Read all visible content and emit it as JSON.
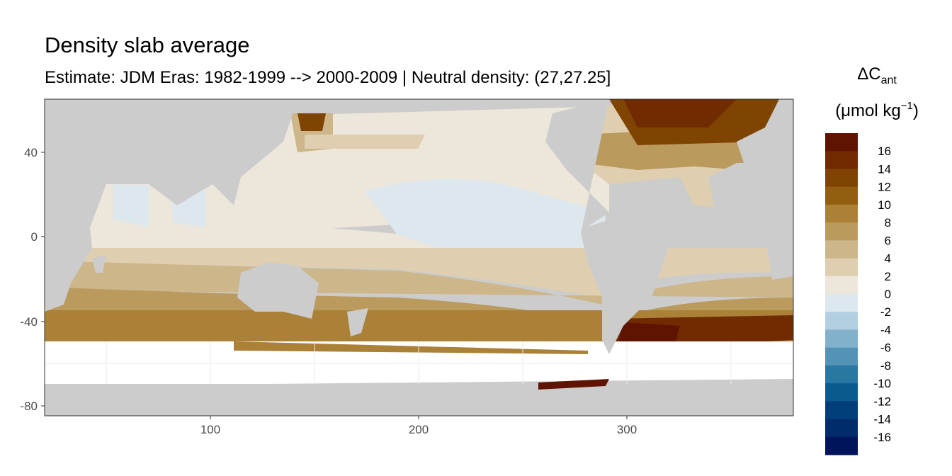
{
  "title": "Density slab average",
  "subtitle": "Estimate: JDM Eras: 1982-1999 --> 2000-2009 | Neutral density: (27,27.25]",
  "legend": {
    "title_main": "ΔC",
    "title_sub": "ant",
    "unit": "(μmol kg",
    "unit_exp": "−1",
    "unit_close": ")",
    "labels": [
      "16",
      "14",
      "12",
      "10",
      "8",
      "6",
      "4",
      "2",
      "0",
      "-2",
      "-4",
      "-6",
      "-8",
      "-10",
      "-12",
      "-14",
      "-16"
    ],
    "colors": [
      "#5e1400",
      "#702b01",
      "#804402",
      "#925e10",
      "#ab8138",
      "#bb9a5d",
      "#ccb68a",
      "#dfcfb0",
      "#ede6db",
      "#dde8ee",
      "#b2cfe1",
      "#82b2cb",
      "#5393b6",
      "#2a77a2",
      "#0a5a8e",
      "#003e7a",
      "#002d6a",
      "#001459"
    ]
  },
  "axes": {
    "x_ticks": [
      "100",
      "200",
      "300"
    ],
    "y_ticks": [
      "40",
      "0",
      "-40",
      "-80"
    ]
  },
  "chart_data": {
    "type": "heatmap",
    "title": "Density slab average",
    "subtitle": "Estimate: JDM Eras: 1982-1999 --> 2000-2009 | Neutral density: (27,27.25]",
    "xlabel": "",
    "ylabel": "",
    "xlim": [
      20,
      380
    ],
    "ylim": [
      -85,
      65
    ],
    "x_ticks": [
      100,
      200,
      300
    ],
    "y_ticks": [
      40,
      0,
      -40,
      -80
    ],
    "legend_breaks": [
      16,
      14,
      12,
      10,
      8,
      6,
      4,
      2,
      0,
      -2,
      -4,
      -6,
      -8,
      -10,
      -12,
      -14,
      -16
    ],
    "legend_placement": "right",
    "land_color": "#cccccc"
  }
}
